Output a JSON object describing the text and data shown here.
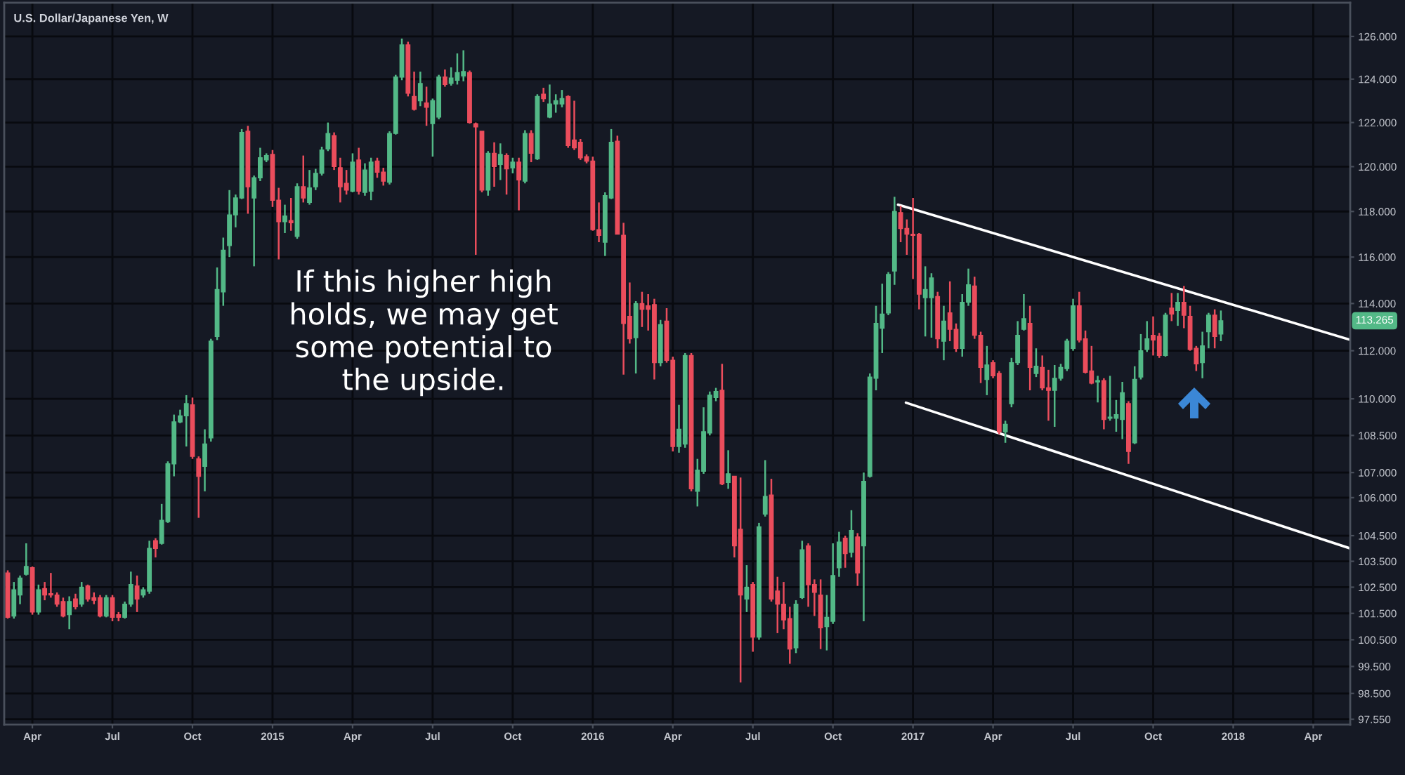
{
  "chart_data": {
    "type": "candlestick",
    "title": "U.S. Dollar/Japanese Yen, W",
    "x": [
      "2014-03-10",
      "2014-03-17",
      "2014-03-24",
      "2014-03-31",
      "2014-04-07",
      "2014-04-14",
      "2014-04-21",
      "2014-04-28",
      "2014-05-05",
      "2014-05-12",
      "2014-05-19",
      "2014-05-26",
      "2014-06-02",
      "2014-06-09",
      "2014-06-16",
      "2014-06-23",
      "2014-06-30",
      "2014-07-07",
      "2014-07-14",
      "2014-07-21",
      "2014-07-28",
      "2014-08-04",
      "2014-08-11",
      "2014-08-18",
      "2014-08-25",
      "2014-09-01",
      "2014-09-08",
      "2014-09-15",
      "2014-09-22",
      "2014-09-29",
      "2014-10-06",
      "2014-10-13",
      "2014-10-20",
      "2014-10-27",
      "2014-11-03",
      "2014-11-10",
      "2014-11-17",
      "2014-11-24",
      "2014-12-01",
      "2014-12-08",
      "2014-12-15",
      "2014-12-22",
      "2014-12-29",
      "2015-01-05",
      "2015-01-12",
      "2015-01-19",
      "2015-01-26",
      "2015-02-02",
      "2015-02-09",
      "2015-02-16",
      "2015-02-23",
      "2015-03-02",
      "2015-03-09",
      "2015-03-16",
      "2015-03-23",
      "2015-03-30",
      "2015-04-06",
      "2015-04-13",
      "2015-04-20",
      "2015-04-27",
      "2015-05-04",
      "2015-05-11",
      "2015-05-18",
      "2015-05-25",
      "2015-06-01",
      "2015-06-08",
      "2015-06-15",
      "2015-06-22",
      "2015-06-29",
      "2015-07-06",
      "2015-07-13",
      "2015-07-20",
      "2015-07-27",
      "2015-08-03",
      "2015-08-10",
      "2015-08-17",
      "2015-08-24",
      "2015-08-31",
      "2015-09-07",
      "2015-09-14",
      "2015-09-21",
      "2015-09-28",
      "2015-10-05",
      "2015-10-12",
      "2015-10-19",
      "2015-10-26",
      "2015-11-02",
      "2015-11-09",
      "2015-11-16",
      "2015-11-23",
      "2015-11-30",
      "2015-12-07",
      "2015-12-14",
      "2015-12-21",
      "2015-12-28",
      "2016-01-04",
      "2016-01-11",
      "2016-01-18",
      "2016-01-25",
      "2016-02-01",
      "2016-02-08",
      "2016-02-15",
      "2016-02-22",
      "2016-02-29",
      "2016-03-07",
      "2016-03-14",
      "2016-03-21",
      "2016-03-28",
      "2016-04-04",
      "2016-04-11",
      "2016-04-18",
      "2016-04-25",
      "2016-05-02",
      "2016-05-09",
      "2016-05-16",
      "2016-05-23",
      "2016-05-30",
      "2016-06-06",
      "2016-06-13",
      "2016-06-20",
      "2016-06-27",
      "2016-07-04",
      "2016-07-11",
      "2016-07-18",
      "2016-07-25",
      "2016-08-01",
      "2016-08-08",
      "2016-08-15",
      "2016-08-22",
      "2016-08-29",
      "2016-09-05",
      "2016-09-12",
      "2016-09-19",
      "2016-09-26",
      "2016-10-03",
      "2016-10-10",
      "2016-10-17",
      "2016-10-24",
      "2016-10-31",
      "2016-11-07",
      "2016-11-14",
      "2016-11-21",
      "2016-11-28",
      "2016-12-05",
      "2016-12-12",
      "2016-12-19",
      "2016-12-26",
      "2017-01-02",
      "2017-01-09",
      "2017-01-16",
      "2017-01-23",
      "2017-01-30",
      "2017-02-06",
      "2017-02-13",
      "2017-02-20",
      "2017-02-27",
      "2017-03-06",
      "2017-03-13",
      "2017-03-20",
      "2017-03-27",
      "2017-04-03",
      "2017-04-10",
      "2017-04-17",
      "2017-04-24",
      "2017-05-01",
      "2017-05-08",
      "2017-05-15",
      "2017-05-22",
      "2017-05-29",
      "2017-06-05",
      "2017-06-12",
      "2017-06-19",
      "2017-06-26",
      "2017-07-03",
      "2017-07-10",
      "2017-07-17",
      "2017-07-24",
      "2017-07-31",
      "2017-08-07",
      "2017-08-14",
      "2017-08-21",
      "2017-08-28",
      "2017-09-04",
      "2017-09-11",
      "2017-09-18",
      "2017-09-25",
      "2017-10-02",
      "2017-10-09",
      "2017-10-16",
      "2017-10-23",
      "2017-10-30",
      "2017-11-06",
      "2017-11-13",
      "2017-11-20",
      "2017-11-27",
      "2017-12-04",
      "2017-12-11",
      "2017-12-18"
    ],
    "ohlc": [
      [
        103.05,
        103.15,
        101.3,
        101.35
      ],
      [
        101.4,
        102.7,
        101.3,
        102.4
      ],
      [
        102.2,
        102.95,
        101.85,
        102.85
      ],
      [
        103.0,
        104.2,
        102.95,
        103.3
      ],
      [
        103.25,
        103.3,
        101.45,
        101.55
      ],
      [
        101.55,
        102.6,
        101.45,
        102.4
      ],
      [
        102.45,
        102.7,
        102.0,
        102.2
      ],
      [
        102.25,
        103.05,
        102.1,
        102.2
      ],
      [
        102.2,
        102.3,
        101.75,
        101.85
      ],
      [
        101.95,
        102.1,
        101.35,
        101.4
      ],
      [
        101.45,
        102.15,
        100.9,
        101.95
      ],
      [
        102.05,
        102.25,
        101.65,
        101.75
      ],
      [
        101.85,
        102.7,
        101.75,
        102.5
      ],
      [
        102.55,
        102.6,
        101.95,
        102.05
      ],
      [
        102.1,
        102.3,
        101.85,
        102.0
      ],
      [
        102.1,
        102.2,
        101.35,
        101.4
      ],
      [
        101.4,
        102.2,
        101.35,
        102.1
      ],
      [
        102.1,
        102.2,
        101.2,
        101.35
      ],
      [
        101.45,
        101.55,
        101.2,
        101.35
      ],
      [
        101.35,
        101.95,
        101.3,
        101.85
      ],
      [
        101.85,
        103.1,
        101.75,
        102.6
      ],
      [
        102.55,
        102.95,
        101.55,
        102.05
      ],
      [
        102.2,
        102.5,
        102.1,
        102.4
      ],
      [
        102.35,
        104.3,
        102.25,
        104.0
      ],
      [
        104.3,
        104.4,
        103.65,
        104.0
      ],
      [
        104.2,
        105.75,
        104.15,
        105.1
      ],
      [
        105.05,
        107.45,
        105.0,
        107.35
      ],
      [
        107.35,
        109.35,
        106.85,
        109.05
      ],
      [
        109.05,
        109.55,
        109.0,
        109.3
      ],
      [
        109.3,
        110.15,
        108.05,
        109.8
      ],
      [
        109.75,
        110.05,
        107.55,
        107.65
      ],
      [
        107.55,
        107.65,
        105.2,
        106.85
      ],
      [
        107.25,
        108.75,
        106.25,
        108.15
      ],
      [
        108.4,
        112.5,
        108.25,
        112.4
      ],
      [
        112.6,
        115.55,
        112.45,
        114.6
      ],
      [
        114.5,
        116.85,
        113.9,
        116.3
      ],
      [
        116.5,
        118.95,
        116.0,
        117.85
      ],
      [
        117.85,
        118.75,
        117.3,
        118.6
      ],
      [
        118.6,
        121.7,
        118.55,
        121.55
      ],
      [
        121.6,
        121.85,
        117.9,
        119.1
      ],
      [
        118.6,
        119.6,
        115.6,
        119.5
      ],
      [
        119.5,
        120.85,
        119.35,
        120.4
      ],
      [
        120.3,
        120.6,
        120.2,
        120.5
      ],
      [
        120.55,
        120.75,
        118.2,
        118.5
      ],
      [
        118.5,
        119.05,
        115.9,
        117.55
      ],
      [
        117.55,
        118.3,
        117.05,
        117.8
      ],
      [
        117.6,
        118.6,
        117.15,
        117.5
      ],
      [
        116.9,
        119.25,
        116.8,
        119.1
      ],
      [
        119.1,
        120.5,
        118.4,
        118.6
      ],
      [
        118.4,
        119.85,
        118.3,
        119.05
      ],
      [
        119.1,
        119.9,
        118.95,
        119.7
      ],
      [
        119.7,
        120.9,
        119.6,
        120.75
      ],
      [
        120.8,
        122.0,
        120.7,
        121.5
      ],
      [
        121.4,
        121.55,
        119.85,
        120.0
      ],
      [
        119.95,
        120.4,
        118.4,
        119.1
      ],
      [
        119.25,
        119.85,
        118.75,
        118.95
      ],
      [
        118.9,
        120.6,
        118.85,
        120.2
      ],
      [
        120.3,
        120.85,
        118.75,
        118.9
      ],
      [
        118.85,
        120.15,
        118.7,
        119.85
      ],
      [
        118.9,
        120.4,
        118.5,
        120.2
      ],
      [
        120.25,
        120.4,
        119.5,
        119.75
      ],
      [
        119.75,
        119.95,
        119.15,
        119.35
      ],
      [
        119.3,
        121.6,
        119.2,
        121.5
      ],
      [
        121.5,
        124.2,
        121.45,
        124.1
      ],
      [
        124.1,
        125.9,
        123.95,
        125.6
      ],
      [
        125.6,
        125.75,
        123.2,
        123.35
      ],
      [
        123.2,
        124.35,
        122.55,
        122.6
      ],
      [
        123.0,
        124.35,
        122.75,
        123.8
      ],
      [
        122.9,
        123.65,
        121.85,
        122.7
      ],
      [
        121.95,
        123.1,
        120.45,
        123.0
      ],
      [
        122.25,
        124.2,
        122.15,
        124.1
      ],
      [
        124.1,
        124.45,
        123.65,
        123.75
      ],
      [
        123.8,
        124.55,
        123.7,
        124.05
      ],
      [
        123.95,
        125.2,
        123.75,
        124.3
      ],
      [
        124.15,
        125.35,
        123.9,
        124.35
      ],
      [
        124.3,
        124.4,
        121.95,
        122.0
      ],
      [
        121.95,
        122.0,
        116.1,
        121.8
      ],
      [
        121.6,
        121.6,
        118.85,
        118.95
      ],
      [
        118.95,
        120.7,
        118.7,
        120.6
      ],
      [
        120.6,
        121.1,
        119.1,
        120.0
      ],
      [
        120.1,
        121.05,
        119.4,
        120.55
      ],
      [
        120.5,
        120.6,
        118.75,
        119.9
      ],
      [
        119.95,
        120.4,
        119.7,
        120.2
      ],
      [
        120.2,
        120.4,
        118.05,
        119.4
      ],
      [
        119.35,
        121.65,
        119.25,
        121.5
      ],
      [
        121.5,
        121.65,
        120.2,
        120.6
      ],
      [
        120.35,
        123.3,
        120.3,
        123.2
      ],
      [
        123.3,
        123.6,
        122.95,
        123.1
      ],
      [
        122.25,
        123.75,
        122.2,
        122.85
      ],
      [
        122.85,
        123.3,
        122.45,
        123.0
      ],
      [
        122.85,
        123.5,
        122.7,
        123.1
      ],
      [
        123.2,
        123.25,
        120.85,
        120.95
      ],
      [
        121.2,
        123.0,
        120.75,
        120.85
      ],
      [
        121.1,
        121.25,
        120.3,
        120.4
      ],
      [
        120.45,
        120.55,
        120.15,
        120.25
      ],
      [
        120.25,
        120.45,
        117.15,
        117.2
      ],
      [
        117.2,
        118.4,
        116.65,
        116.95
      ],
      [
        116.65,
        118.85,
        116.05,
        118.7
      ],
      [
        118.6,
        121.7,
        118.55,
        121.1
      ],
      [
        121.15,
        121.4,
        117.0,
        117.0
      ],
      [
        116.95,
        117.5,
        111.0,
        113.15
      ],
      [
        113.45,
        114.9,
        112.3,
        112.5
      ],
      [
        112.55,
        114.1,
        111.05,
        114.0
      ],
      [
        114.0,
        114.5,
        113.0,
        113.75
      ],
      [
        113.9,
        114.4,
        112.85,
        113.75
      ],
      [
        113.95,
        114.2,
        110.8,
        111.5
      ],
      [
        111.5,
        113.3,
        111.35,
        113.1
      ],
      [
        113.25,
        113.8,
        111.5,
        111.6
      ],
      [
        111.6,
        111.75,
        107.85,
        108.05
      ],
      [
        108.05,
        109.75,
        107.8,
        108.75
      ],
      [
        108.15,
        111.9,
        108.0,
        111.8
      ],
      [
        111.8,
        111.9,
        106.25,
        106.35
      ],
      [
        106.25,
        107.55,
        105.65,
        107.1
      ],
      [
        107.05,
        109.65,
        106.95,
        108.65
      ],
      [
        108.6,
        110.3,
        108.5,
        110.15
      ],
      [
        110.05,
        110.45,
        109.9,
        110.3
      ],
      [
        110.35,
        111.45,
        106.5,
        106.55
      ],
      [
        106.6,
        107.9,
        106.35,
        106.95
      ],
      [
        106.85,
        106.85,
        103.65,
        104.1
      ],
      [
        104.75,
        106.8,
        98.9,
        102.2
      ],
      [
        102.05,
        103.35,
        101.55,
        102.5
      ],
      [
        102.6,
        102.7,
        100.05,
        100.6
      ],
      [
        100.6,
        105.0,
        100.5,
        104.85
      ],
      [
        105.35,
        107.5,
        105.25,
        106.05
      ],
      [
        106.1,
        106.75,
        101.95,
        102.05
      ],
      [
        102.35,
        102.9,
        100.75,
        101.85
      ],
      [
        101.85,
        102.7,
        100.9,
        101.25
      ],
      [
        101.3,
        101.75,
        99.6,
        100.15
      ],
      [
        100.2,
        102.0,
        100.0,
        101.85
      ],
      [
        102.1,
        104.3,
        102.05,
        103.95
      ],
      [
        104.1,
        104.2,
        101.75,
        102.6
      ],
      [
        102.6,
        102.8,
        101.4,
        102.3
      ],
      [
        102.2,
        102.8,
        100.15,
        100.95
      ],
      [
        101.0,
        102.2,
        100.1,
        101.35
      ],
      [
        101.2,
        104.2,
        101.1,
        102.95
      ],
      [
        103.25,
        104.65,
        102.9,
        104.25
      ],
      [
        104.4,
        104.5,
        103.25,
        103.8
      ],
      [
        103.85,
        105.5,
        103.65,
        104.7
      ],
      [
        104.45,
        104.6,
        102.55,
        103.05
      ],
      [
        104.1,
        107.0,
        101.2,
        106.65
      ],
      [
        106.85,
        111.05,
        106.8,
        110.9
      ],
      [
        110.85,
        113.9,
        110.35,
        113.15
      ],
      [
        112.95,
        114.85,
        111.9,
        113.55
      ],
      [
        113.6,
        115.35,
        113.5,
        115.25
      ],
      [
        115.4,
        118.65,
        114.8,
        118.0
      ],
      [
        117.95,
        118.25,
        116.65,
        117.25
      ],
      [
        117.25,
        117.65,
        116.1,
        117.0
      ],
      [
        117.0,
        118.6,
        115.05,
        116.95
      ],
      [
        117.0,
        117.05,
        113.75,
        114.4
      ],
      [
        114.25,
        115.6,
        112.6,
        114.6
      ],
      [
        114.25,
        115.3,
        112.55,
        115.1
      ],
      [
        114.3,
        114.5,
        112.1,
        112.5
      ],
      [
        112.4,
        113.9,
        111.6,
        113.25
      ],
      [
        113.6,
        114.95,
        112.4,
        112.9
      ],
      [
        112.9,
        113.15,
        111.95,
        112.1
      ],
      [
        112.1,
        114.4,
        111.75,
        114.05
      ],
      [
        114.05,
        115.5,
        113.9,
        114.8
      ],
      [
        114.75,
        115.15,
        112.5,
        112.65
      ],
      [
        112.65,
        112.8,
        110.65,
        111.3
      ],
      [
        110.8,
        112.2,
        110.15,
        111.4
      ],
      [
        111.5,
        111.6,
        110.85,
        110.95
      ],
      [
        111.05,
        111.15,
        108.55,
        108.65
      ],
      [
        108.65,
        109.1,
        108.2,
        108.95
      ],
      [
        109.8,
        111.7,
        109.65,
        111.5
      ],
      [
        111.5,
        113.25,
        111.4,
        112.65
      ],
      [
        112.9,
        114.4,
        112.85,
        113.35
      ],
      [
        113.15,
        113.9,
        110.35,
        111.3
      ],
      [
        111.05,
        112.1,
        110.9,
        111.35
      ],
      [
        111.3,
        111.8,
        110.35,
        110.45
      ],
      [
        110.45,
        111.2,
        109.1,
        110.35
      ],
      [
        110.35,
        111.4,
        108.85,
        110.85
      ],
      [
        110.85,
        111.45,
        110.75,
        111.3
      ],
      [
        111.25,
        112.5,
        111.15,
        112.4
      ],
      [
        112.1,
        114.2,
        112.0,
        113.9
      ],
      [
        113.9,
        114.5,
        112.35,
        112.45
      ],
      [
        112.5,
        112.85,
        111.05,
        111.1
      ],
      [
        111.15,
        112.2,
        110.6,
        110.65
      ],
      [
        110.7,
        110.95,
        109.85,
        110.75
      ],
      [
        110.75,
        110.85,
        108.75,
        109.15
      ],
      [
        109.2,
        110.95,
        109.1,
        109.25
      ],
      [
        109.2,
        109.95,
        108.65,
        109.35
      ],
      [
        109.15,
        110.7,
        108.35,
        110.25
      ],
      [
        109.8,
        109.9,
        107.35,
        107.85
      ],
      [
        108.2,
        111.35,
        108.15,
        110.8
      ],
      [
        110.9,
        112.7,
        110.8,
        112.0
      ],
      [
        112.05,
        113.25,
        111.95,
        112.5
      ],
      [
        112.65,
        113.45,
        111.8,
        112.45
      ],
      [
        112.6,
        112.75,
        111.7,
        111.8
      ],
      [
        111.8,
        113.6,
        111.75,
        113.5
      ],
      [
        113.8,
        114.45,
        113.25,
        113.55
      ],
      [
        113.7,
        114.45,
        113.05,
        114.05
      ],
      [
        114.05,
        114.75,
        112.95,
        113.5
      ],
      [
        113.45,
        113.9,
        112.0,
        112.05
      ],
      [
        112.1,
        112.2,
        111.15,
        111.45
      ],
      [
        111.5,
        112.8,
        110.85,
        112.2
      ],
      [
        112.8,
        113.6,
        112.1,
        113.5
      ],
      [
        113.5,
        113.75,
        112.1,
        112.6
      ],
      [
        112.7,
        113.7,
        112.4,
        113.265
      ]
    ],
    "colors": [
      "#eb4d5c",
      "#53b987",
      "#53b987",
      "#53b987",
      "#eb4d5c",
      "#53b987",
      "#eb4d5c",
      "#eb4d5c",
      "#eb4d5c",
      "#eb4d5c",
      "#53b987",
      "#eb4d5c",
      "#53b987",
      "#eb4d5c",
      "#eb4d5c",
      "#eb4d5c",
      "#53b987",
      "#eb4d5c",
      "#eb4d5c",
      "#53b987",
      "#53b987",
      "#eb4d5c",
      "#53b987",
      "#53b987",
      "#eb4d5c",
      "#53b987",
      "#53b987",
      "#53b987",
      "#53b987",
      "#53b987",
      "#eb4d5c",
      "#eb4d5c",
      "#53b987",
      "#53b987",
      "#53b987",
      "#53b987",
      "#53b987",
      "#53b987",
      "#53b987",
      "#eb4d5c",
      "#53b987",
      "#53b987",
      "#53b987",
      "#eb4d5c",
      "#eb4d5c",
      "#53b987",
      "#eb4d5c",
      "#53b987",
      "#eb4d5c",
      "#53b987",
      "#53b987",
      "#53b987",
      "#53b987",
      "#eb4d5c",
      "#eb4d5c",
      "#eb4d5c",
      "#53b987",
      "#eb4d5c",
      "#53b987",
      "#53b987",
      "#eb4d5c",
      "#eb4d5c",
      "#53b987",
      "#53b987",
      "#53b987",
      "#eb4d5c",
      "#eb4d5c",
      "#53b987",
      "#eb4d5c",
      "#53b987",
      "#53b987",
      "#eb4d5c",
      "#53b987",
      "#53b987",
      "#53b987",
      "#eb4d5c",
      "#eb4d5c",
      "#eb4d5c",
      "#53b987",
      "#eb4d5c",
      "#53b987",
      "#eb4d5c",
      "#53b987",
      "#eb4d5c",
      "#53b987",
      "#eb4d5c",
      "#53b987",
      "#eb4d5c",
      "#53b987",
      "#53b987",
      "#53b987",
      "#eb4d5c",
      "#eb4d5c",
      "#eb4d5c",
      "#eb4d5c",
      "#eb4d5c",
      "#eb4d5c",
      "#53b987",
      "#53b987",
      "#eb4d5c",
      "#eb4d5c",
      "#eb4d5c",
      "#53b987",
      "#eb4d5c",
      "#eb4d5c",
      "#eb4d5c",
      "#53b987",
      "#eb4d5c",
      "#eb4d5c",
      "#53b987",
      "#53b987",
      "#eb4d5c",
      "#53b987",
      "#53b987",
      "#53b987",
      "#53b987",
      "#eb4d5c",
      "#53b987",
      "#eb4d5c",
      "#eb4d5c",
      "#53b987",
      "#eb4d5c",
      "#53b987",
      "#53b987",
      "#eb4d5c",
      "#eb4d5c",
      "#eb4d5c",
      "#eb4d5c",
      "#53b987",
      "#53b987",
      "#eb4d5c",
      "#eb4d5c",
      "#eb4d5c",
      "#53b987",
      "#53b987",
      "#53b987",
      "#eb4d5c",
      "#53b987",
      "#eb4d5c",
      "#53b987",
      "#53b987",
      "#53b987",
      "#53b987",
      "#53b987",
      "#53b987",
      "#eb4d5c",
      "#eb4d5c",
      "#eb4d5c",
      "#eb4d5c",
      "#53b987",
      "#53b987",
      "#eb4d5c",
      "#53b987",
      "#eb4d5c",
      "#eb4d5c",
      "#53b987",
      "#53b987",
      "#eb4d5c",
      "#eb4d5c",
      "#53b987",
      "#eb4d5c",
      "#eb4d5c",
      "#53b987",
      "#53b987",
      "#53b987",
      "#53b987",
      "#eb4d5c",
      "#53b987",
      "#eb4d5c",
      "#eb4d5c",
      "#53b987",
      "#53b987",
      "#53b987",
      "#53b987",
      "#eb4d5c",
      "#eb4d5c",
      "#eb4d5c",
      "#53b987",
      "#eb4d5c",
      "#53b987",
      "#53b987",
      "#53b987",
      "#eb4d5c",
      "#53b987",
      "#53b987",
      "#53b987",
      "#eb4d5c",
      "#eb4d5c",
      "#53b987",
      "#eb4d5c",
      "#53b987",
      "#eb4d5c",
      "#eb4d5c",
      "#eb4d5c",
      "#53b987",
      "#53b987",
      "#eb4d5c",
      "#53b987"
    ],
    "series": [
      {
        "type": "line",
        "color": "#ffffff",
        "x": [
          "2016-12-16",
          "2018-05-14"
        ],
        "values": [
          118.3,
          112.46
        ]
      },
      {
        "type": "line",
        "color": "#ffffff",
        "x": [
          "2016-12-25",
          "2018-05-14"
        ],
        "values": [
          109.84,
          104.0
        ]
      }
    ],
    "log": true,
    "ylim": [
      97.36,
      127.6
    ],
    "yticks": [
      {
        "value": 126,
        "label": "126.000"
      },
      {
        "value": 124,
        "label": "124.000"
      },
      {
        "value": 122,
        "label": "122.000"
      },
      {
        "value": 120,
        "label": "120.000"
      },
      {
        "value": 118,
        "label": "118.000"
      },
      {
        "value": 116,
        "label": "116.000"
      },
      {
        "value": 114,
        "label": "114.000"
      },
      {
        "value": 112,
        "label": "112.000"
      },
      {
        "value": 110,
        "label": "110.000"
      },
      {
        "value": 108.5,
        "label": "108.500"
      },
      {
        "value": 107,
        "label": "107.000"
      },
      {
        "value": 106,
        "label": "106.000"
      },
      {
        "value": 104.5,
        "label": "104.500"
      },
      {
        "value": 103.5,
        "label": "103.500"
      },
      {
        "value": 102.5,
        "label": "102.500"
      },
      {
        "value": 101.5,
        "label": "101.500"
      },
      {
        "value": 100.5,
        "label": "100.500"
      },
      {
        "value": 99.5,
        "label": "99.500"
      },
      {
        "value": 98.5,
        "label": "98.500"
      },
      {
        "value": 97.55,
        "label": "97.550"
      }
    ],
    "xlim": [
      "2014-03-06",
      "2018-05-14"
    ],
    "xticks": [
      {
        "value": "2014-04-07",
        "label": "Apr"
      },
      {
        "value": "2014-07-07",
        "label": "Jul"
      },
      {
        "value": "2014-10-06",
        "label": "Oct"
      },
      {
        "value": "2015-01-05",
        "label": "2015"
      },
      {
        "value": "2015-04-06",
        "label": "Apr"
      },
      {
        "value": "2015-07-06",
        "label": "Jul"
      },
      {
        "value": "2015-10-05",
        "label": "Oct"
      },
      {
        "value": "2016-01-04",
        "label": "2016"
      },
      {
        "value": "2016-04-04",
        "label": "Apr"
      },
      {
        "value": "2016-07-04",
        "label": "Jul"
      },
      {
        "value": "2016-10-03",
        "label": "Oct"
      },
      {
        "value": "2017-01-02",
        "label": "2017"
      },
      {
        "value": "2017-04-03",
        "label": "Apr"
      },
      {
        "value": "2017-07-03",
        "label": "Jul"
      },
      {
        "value": "2017-10-02",
        "label": "Oct"
      },
      {
        "value": "2018-01-01",
        "label": "2018"
      },
      {
        "value": "2018-04-02",
        "label": "Apr"
      }
    ],
    "grid": true,
    "annotations": [
      "If this higher high\nholds, we may get\nsome potential to\nthe upside.",
      {
        "text": "113.265",
        "y": 113.265
      }
    ]
  }
}
